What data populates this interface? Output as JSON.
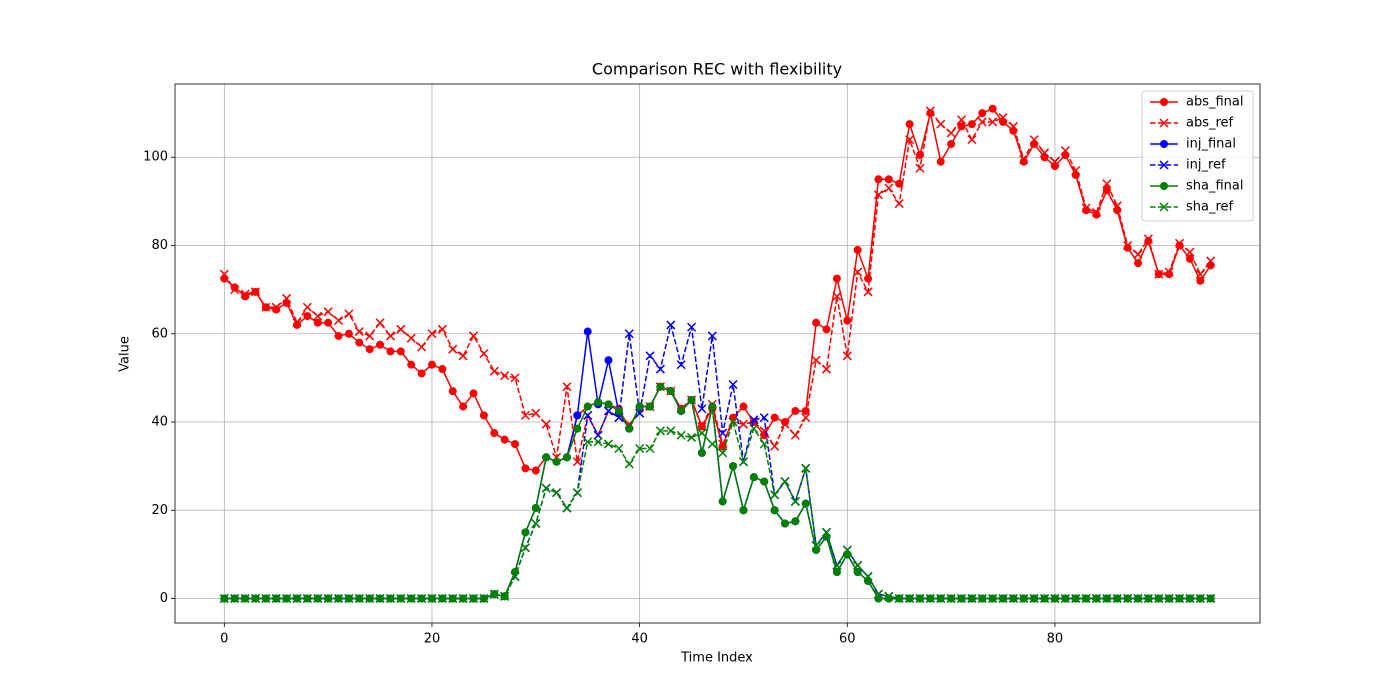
{
  "chart_data": {
    "type": "line",
    "title": "Comparison REC with flexibility",
    "xlabel": "Time Index",
    "ylabel": "Value",
    "x": [
      0,
      1,
      2,
      3,
      4,
      5,
      6,
      7,
      8,
      9,
      10,
      11,
      12,
      13,
      14,
      15,
      16,
      17,
      18,
      19,
      20,
      21,
      22,
      23,
      24,
      25,
      26,
      27,
      28,
      29,
      30,
      31,
      32,
      33,
      34,
      35,
      36,
      37,
      38,
      39,
      40,
      41,
      42,
      43,
      44,
      45,
      46,
      47,
      48,
      49,
      50,
      51,
      52,
      53,
      54,
      55,
      56,
      57,
      58,
      59,
      60,
      61,
      62,
      63,
      64,
      65,
      66,
      67,
      68,
      69,
      70,
      71,
      72,
      73,
      74,
      75,
      76,
      77,
      78,
      79,
      80,
      81,
      82,
      83,
      84,
      85,
      86,
      87,
      88,
      89,
      90,
      91,
      92,
      93,
      94,
      95
    ],
    "series": [
      {
        "name": "abs_final",
        "color": "#ff0000",
        "marker": "o",
        "linestyle": "solid",
        "values": [
          72.5,
          70.5,
          68.5,
          69.5,
          66,
          65.5,
          67,
          62,
          64,
          62.5,
          62.5,
          59.5,
          60,
          58,
          56.5,
          57.5,
          56,
          56,
          53,
          51,
          53,
          52,
          47,
          43.5,
          46.5,
          41.5,
          37.5,
          36,
          35,
          29.5,
          29,
          32,
          31,
          32,
          41.5,
          43.5,
          44.5,
          44,
          43,
          38.5,
          43.5,
          43.5,
          48,
          47,
          43,
          45,
          39,
          43,
          34.5,
          41,
          43.5,
          40,
          37,
          41,
          40,
          42.5,
          42.5,
          62.5,
          61,
          72.5,
          63,
          79,
          72.5,
          95,
          95,
          94,
          107.5,
          100.5,
          110,
          99,
          103,
          107,
          107.5,
          110,
          111,
          108,
          106,
          99,
          103,
          100,
          98,
          100.5,
          96,
          88,
          87,
          92.5,
          88,
          79.5,
          76,
          81,
          73.5,
          73.5,
          80,
          77,
          72,
          75.5
        ]
      },
      {
        "name": "abs_ref",
        "color": "#ff0000",
        "marker": "x",
        "linestyle": "dashed",
        "values": [
          73.5,
          70,
          69,
          69.5,
          66,
          66,
          68,
          62.5,
          66,
          64,
          65,
          63,
          64.5,
          60.5,
          59.5,
          62.5,
          59.5,
          61,
          59,
          57,
          60,
          61,
          56.5,
          55,
          59.5,
          55.5,
          51.5,
          50.5,
          50,
          41.5,
          42,
          39.5,
          32,
          48,
          31,
          41.5,
          37,
          42.5,
          41,
          39.5,
          42,
          43.5,
          48,
          47,
          43,
          45,
          39,
          44,
          35,
          40,
          39.5,
          40,
          38,
          34.5,
          39.5,
          37,
          41,
          54,
          52,
          68.5,
          55,
          74,
          69.5,
          91.5,
          93,
          89.5,
          104,
          97.5,
          110.5,
          107.5,
          105.5,
          108.5,
          104,
          108,
          108,
          109,
          107,
          99.5,
          104,
          101,
          99,
          101.5,
          97,
          88.5,
          87.5,
          94,
          89,
          80,
          78,
          81.5,
          73.5,
          74,
          80.5,
          78.5,
          73.5,
          76.5
        ]
      },
      {
        "name": "inj_final",
        "color": "#0000ff",
        "marker": "o",
        "linestyle": "solid",
        "values": [
          0,
          0,
          0,
          0,
          0,
          0,
          0,
          0,
          0,
          0,
          0,
          0,
          0,
          0,
          0,
          0,
          0,
          0,
          0,
          0,
          0,
          0,
          0,
          0,
          0,
          0,
          1,
          0.5,
          6,
          15,
          20.5,
          32,
          31,
          32,
          41.5,
          60.5,
          44,
          54,
          42,
          38.5,
          43.5,
          43.5,
          48,
          47,
          42.5,
          45,
          33,
          43.5,
          22,
          30,
          20,
          27.5,
          26.5,
          20,
          17,
          17.5,
          21.5,
          11,
          14,
          6,
          10,
          6,
          4,
          0,
          0,
          0,
          0,
          0,
          0,
          0,
          0,
          0,
          0,
          0,
          0,
          0,
          0,
          0,
          0,
          0,
          0,
          0,
          0,
          0,
          0,
          0,
          0,
          0,
          0,
          0,
          0,
          0,
          0,
          0,
          0,
          0
        ]
      },
      {
        "name": "inj_ref",
        "color": "#0000ff",
        "marker": "x",
        "linestyle": "dashed",
        "values": [
          0,
          0,
          0,
          0,
          0,
          0,
          0,
          0,
          0,
          0,
          0,
          0,
          0,
          0,
          0,
          0,
          0,
          0,
          0,
          0,
          0,
          0,
          0,
          0,
          0,
          0,
          1,
          0.5,
          5,
          11.5,
          17,
          25,
          24,
          20.5,
          24,
          41.5,
          37,
          42.5,
          41,
          60,
          42,
          55,
          52,
          62,
          53,
          61.5,
          43,
          59.5,
          37.5,
          48.5,
          31,
          40.5,
          41,
          23.5,
          26.5,
          22,
          29.5,
          12,
          15,
          7.5,
          11,
          7.5,
          5,
          1,
          0.5,
          0,
          0,
          0,
          0,
          0,
          0,
          0,
          0,
          0,
          0,
          0,
          0,
          0,
          0,
          0,
          0,
          0,
          0,
          0,
          0,
          0,
          0,
          0,
          0,
          0,
          0,
          0,
          0,
          0,
          0,
          0
        ]
      },
      {
        "name": "sha_final",
        "color": "#008000",
        "marker": "o",
        "linestyle": "solid",
        "values": [
          0,
          0,
          0,
          0,
          0,
          0,
          0,
          0,
          0,
          0,
          0,
          0,
          0,
          0,
          0,
          0,
          0,
          0,
          0,
          0,
          0,
          0,
          0,
          0,
          0,
          0,
          1,
          0.5,
          6,
          15,
          20.5,
          32,
          31,
          32,
          38.5,
          43.5,
          44.5,
          44,
          42.5,
          38.5,
          43.5,
          43.5,
          48,
          47,
          42.5,
          45,
          33,
          43.5,
          22,
          30,
          20,
          27.5,
          26.5,
          20,
          17,
          17.5,
          21.5,
          11,
          14,
          6,
          10,
          6,
          4,
          0,
          0,
          0,
          0,
          0,
          0,
          0,
          0,
          0,
          0,
          0,
          0,
          0,
          0,
          0,
          0,
          0,
          0,
          0,
          0,
          0,
          0,
          0,
          0,
          0,
          0,
          0,
          0,
          0,
          0,
          0,
          0,
          0
        ]
      },
      {
        "name": "sha_ref",
        "color": "#008000",
        "marker": "x",
        "linestyle": "dashed",
        "values": [
          0,
          0,
          0,
          0,
          0,
          0,
          0,
          0,
          0,
          0,
          0,
          0,
          0,
          0,
          0,
          0,
          0,
          0,
          0,
          0,
          0,
          0,
          0,
          0,
          0,
          0,
          1,
          0.5,
          5,
          11.5,
          17,
          25,
          24,
          20.5,
          24,
          35.5,
          35.5,
          35,
          34,
          30.5,
          34,
          34,
          38,
          38,
          37,
          36.5,
          37.5,
          35,
          33,
          40,
          31,
          38.5,
          35,
          23.5,
          26.5,
          22,
          29.5,
          12,
          15,
          7.5,
          11,
          7.5,
          5,
          1,
          0.5,
          0,
          0,
          0,
          0,
          0,
          0,
          0,
          0,
          0,
          0,
          0,
          0,
          0,
          0,
          0,
          0,
          0,
          0,
          0,
          0,
          0,
          0,
          0,
          0,
          0,
          0,
          0,
          0,
          0,
          0,
          0
        ]
      }
    ],
    "xlim": [
      -4.75,
      99.75
    ],
    "ylim": [
      -5.55,
      116.6
    ],
    "xticks": [
      0,
      20,
      40,
      60,
      80
    ],
    "yticks": [
      0,
      20,
      40,
      60,
      80,
      100
    ],
    "grid": true,
    "legend": "upper right"
  }
}
